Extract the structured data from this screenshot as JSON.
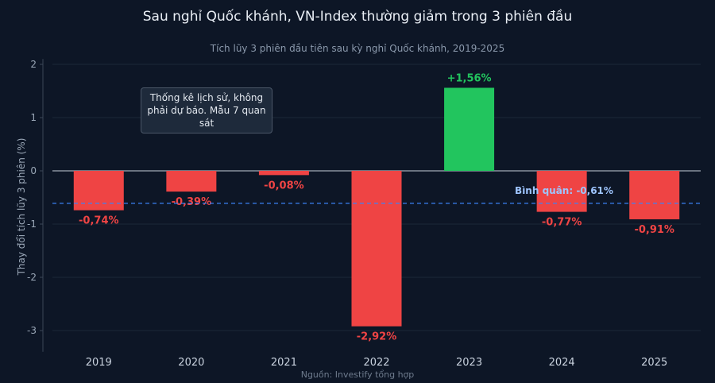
{
  "title": "Sau nghỉ Quốc khánh, VN-Index thường giảm trong 3 phiên đầu",
  "subtitle": "Tích lũy 3 phiên đầu tiên sau kỳ nghỉ Quốc khánh, 2019-2025",
  "source": "Nguồn: Investify tổng hợp",
  "note": "Thống kê lịch sử, không phải dự báo. Mẫu 7 quan sát",
  "colors": {
    "background": "#0d1626",
    "negative": "#ef4444",
    "positive": "#22c55e",
    "average_line": "#3b82f6",
    "average_label": "#9ec5ff"
  },
  "chart_data": {
    "type": "bar",
    "categories": [
      "2019",
      "2020",
      "2021",
      "2022",
      "2023",
      "2024",
      "2025"
    ],
    "values": [
      -0.74,
      -0.39,
      -0.08,
      -2.92,
      1.56,
      -0.77,
      -0.91
    ],
    "value_labels": [
      "-0,74%",
      "-0,39%",
      "-0,08%",
      "-2,92%",
      "+1,56%",
      "-0,77%",
      "-0,91%"
    ],
    "ylabel": "Thay đổi tích lũy 3 phiên (%)",
    "yticks": [
      2,
      1,
      0,
      -1,
      -2,
      -3
    ],
    "ylim": [
      -3.4,
      2.1
    ],
    "average": -0.61,
    "average_label": "Bình quân: -0,61%",
    "grid": true
  }
}
